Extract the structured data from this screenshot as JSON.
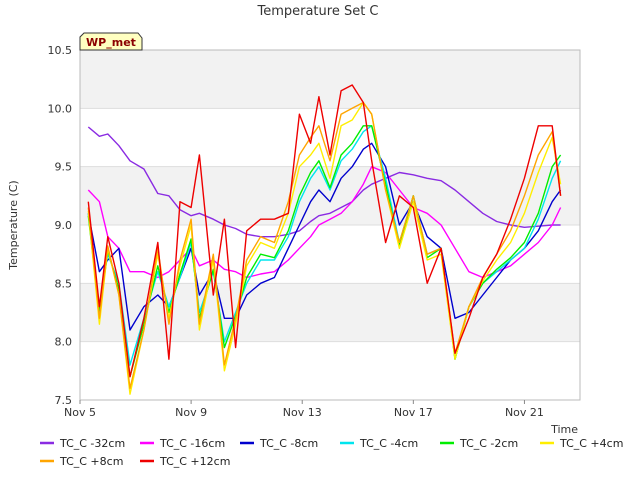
{
  "chart_data": {
    "type": "line",
    "title": "Temperature Set C",
    "xlabel": "Time",
    "ylabel": "Temperature (C)",
    "badge": "WP_met",
    "x_unit": "days since Nov 5",
    "x_ticks": [
      {
        "value": 0,
        "label": "Nov 5"
      },
      {
        "value": 4,
        "label": "Nov 9"
      },
      {
        "value": 8,
        "label": "Nov 13"
      },
      {
        "value": 12,
        "label": "Nov 17"
      },
      {
        "value": 16,
        "label": "Nov 21"
      }
    ],
    "xlim": [
      0,
      18
    ],
    "ylim": [
      7.5,
      10.5
    ],
    "y_ticks": [
      "7.5",
      "8.0",
      "8.5",
      "9.0",
      "9.5",
      "10.0",
      "10.5"
    ],
    "grid": true,
    "legend_position": "bottom",
    "x": [
      0.3,
      0.7,
      1.0,
      1.4,
      1.8,
      2.3,
      2.8,
      3.2,
      3.6,
      4.0,
      4.3,
      4.8,
      5.2,
      5.6,
      6.0,
      6.5,
      7.0,
      7.5,
      7.9,
      8.3,
      8.6,
      9.0,
      9.4,
      9.8,
      10.2,
      10.5,
      11.0,
      11.5,
      12.0,
      12.5,
      13.0,
      13.5,
      14.0,
      14.5,
      15.0,
      15.5,
      16.0,
      16.5,
      17.0,
      17.3
    ],
    "series": [
      {
        "name": "TC_C -32cm",
        "color": "#8a2be2",
        "values": [
          9.84,
          9.76,
          9.78,
          9.68,
          9.55,
          9.48,
          9.27,
          9.25,
          9.13,
          9.08,
          9.1,
          9.05,
          9.0,
          8.97,
          8.92,
          8.9,
          8.9,
          8.92,
          8.95,
          9.03,
          9.08,
          9.1,
          9.15,
          9.2,
          9.3,
          9.35,
          9.4,
          9.45,
          9.43,
          9.4,
          9.38,
          9.3,
          9.2,
          9.1,
          9.03,
          9.0,
          8.98,
          8.99,
          9.0,
          9.0
        ]
      },
      {
        "name": "TC_C -16cm",
        "color": "#ff00ff",
        "values": [
          9.3,
          9.2,
          8.9,
          8.8,
          8.6,
          8.6,
          8.55,
          8.6,
          8.7,
          8.8,
          8.65,
          8.7,
          8.62,
          8.6,
          8.55,
          8.58,
          8.6,
          8.7,
          8.8,
          8.9,
          9.0,
          9.05,
          9.1,
          9.2,
          9.35,
          9.5,
          9.45,
          9.3,
          9.15,
          9.1,
          9.0,
          8.8,
          8.6,
          8.55,
          8.6,
          8.65,
          8.75,
          8.85,
          9.0,
          9.15
        ]
      },
      {
        "name": "TC_C -8cm",
        "color": "#0000cd",
        "values": [
          9.1,
          8.6,
          8.7,
          8.8,
          8.1,
          8.3,
          8.4,
          8.3,
          8.55,
          8.8,
          8.4,
          8.6,
          8.2,
          8.2,
          8.4,
          8.5,
          8.55,
          8.8,
          9.0,
          9.2,
          9.3,
          9.2,
          9.4,
          9.5,
          9.65,
          9.7,
          9.5,
          9.0,
          9.2,
          8.9,
          8.8,
          8.2,
          8.25,
          8.4,
          8.55,
          8.7,
          8.8,
          8.95,
          9.2,
          9.3
        ]
      },
      {
        "name": "TC_C -4cm",
        "color": "#00e5ee",
        "values": [
          9.1,
          8.3,
          8.75,
          8.5,
          7.8,
          8.2,
          8.6,
          8.3,
          8.55,
          8.85,
          8.25,
          8.6,
          8.0,
          8.25,
          8.5,
          8.7,
          8.7,
          8.9,
          9.2,
          9.4,
          9.5,
          9.3,
          9.55,
          9.65,
          9.8,
          9.85,
          9.4,
          8.85,
          9.25,
          8.75,
          8.8,
          7.85,
          8.3,
          8.5,
          8.6,
          8.7,
          8.8,
          9.05,
          9.4,
          9.55
        ]
      },
      {
        "name": "TC_C -2cm",
        "color": "#00ee00",
        "values": [
          9.08,
          8.25,
          8.78,
          8.45,
          7.7,
          8.15,
          8.65,
          8.25,
          8.58,
          8.88,
          8.2,
          8.62,
          7.95,
          8.22,
          8.55,
          8.75,
          8.72,
          8.95,
          9.25,
          9.45,
          9.55,
          9.32,
          9.6,
          9.7,
          9.85,
          9.85,
          9.35,
          8.82,
          9.25,
          8.72,
          8.8,
          7.85,
          8.3,
          8.5,
          8.62,
          8.72,
          8.85,
          9.1,
          9.5,
          9.6
        ]
      },
      {
        "name": "TC_C +4cm",
        "color": "#ffee00",
        "values": [
          9.12,
          8.15,
          8.8,
          8.4,
          7.55,
          8.1,
          8.75,
          8.2,
          8.65,
          9.0,
          8.1,
          8.7,
          7.75,
          8.15,
          8.65,
          8.85,
          8.8,
          9.1,
          9.5,
          9.6,
          9.7,
          9.4,
          9.85,
          9.9,
          10.05,
          9.95,
          9.3,
          8.8,
          9.2,
          8.7,
          8.75,
          7.85,
          8.3,
          8.52,
          8.7,
          8.85,
          9.1,
          9.45,
          9.75,
          9.35
        ]
      },
      {
        "name": "TC_C +8cm",
        "color": "#ffa500",
        "values": [
          9.15,
          8.2,
          8.82,
          8.4,
          7.6,
          8.1,
          8.8,
          8.15,
          8.7,
          9.05,
          8.15,
          8.75,
          7.8,
          8.2,
          8.7,
          8.9,
          8.85,
          9.2,
          9.6,
          9.75,
          9.85,
          9.55,
          9.95,
          10.0,
          10.05,
          9.95,
          9.3,
          8.85,
          9.25,
          8.75,
          8.8,
          7.9,
          8.3,
          8.55,
          8.75,
          8.95,
          9.25,
          9.6,
          9.8,
          9.25
        ]
      },
      {
        "name": "TC_C +12cm",
        "color": "#ee0000",
        "values": [
          9.2,
          8.3,
          8.9,
          8.5,
          7.7,
          8.2,
          8.85,
          7.85,
          9.2,
          9.15,
          9.6,
          8.4,
          9.05,
          7.95,
          8.95,
          9.05,
          9.05,
          9.1,
          9.95,
          9.7,
          10.1,
          9.6,
          10.15,
          10.2,
          10.05,
          9.55,
          8.85,
          9.25,
          9.15,
          8.5,
          8.8,
          7.9,
          8.2,
          8.55,
          8.75,
          9.05,
          9.4,
          9.85,
          9.85,
          9.25
        ]
      }
    ]
  }
}
